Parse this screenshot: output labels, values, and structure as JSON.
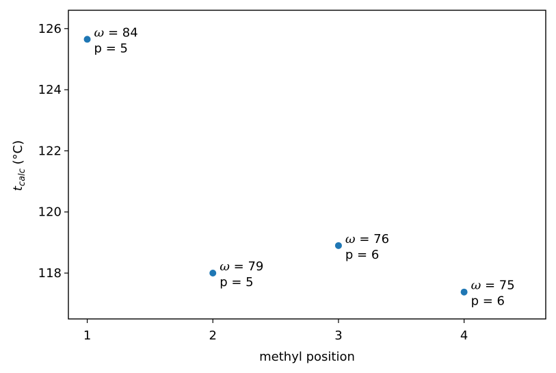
{
  "chart_data": {
    "type": "scatter",
    "xlabel": "methyl position",
    "ylabel_main": "t",
    "ylabel_sub": "calc",
    "ylabel_unit": " (°C)",
    "xlim": [
      0.85,
      4.65
    ],
    "ylim": [
      116.5,
      126.6
    ],
    "xticks": [
      1,
      2,
      3,
      4
    ],
    "yticks": [
      118,
      120,
      122,
      124,
      126
    ],
    "marker_color": "#1f77b4",
    "points": [
      {
        "x": 1,
        "y": 125.65,
        "omega_label": "ω = 84",
        "p_label": "p = 5"
      },
      {
        "x": 2,
        "y": 118.0,
        "omega_label": "ω = 79",
        "p_label": "p = 5"
      },
      {
        "x": 3,
        "y": 118.9,
        "omega_label": "ω = 76",
        "p_label": "p = 6"
      },
      {
        "x": 4,
        "y": 117.38,
        "omega_label": "ω = 75",
        "p_label": "p = 6"
      }
    ]
  }
}
